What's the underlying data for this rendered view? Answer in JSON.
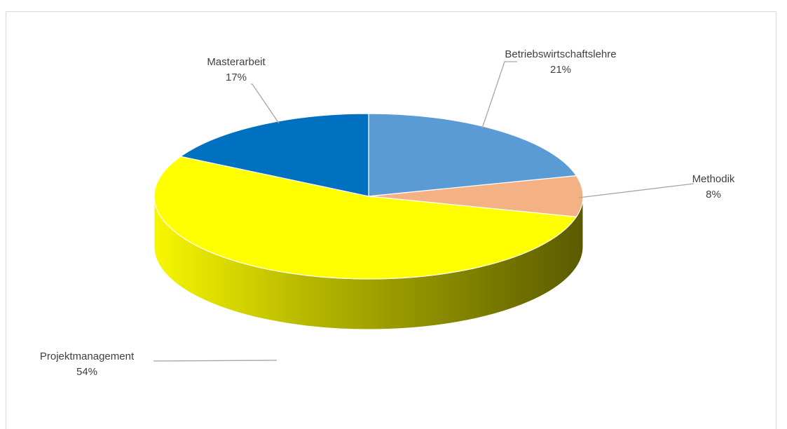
{
  "chart_data": {
    "type": "pie",
    "title": "",
    "categories": [
      "Betriebswirtschaftslehre",
      "Methodik",
      "Projektmanagement",
      "Masterarbeit"
    ],
    "values": [
      21,
      8,
      54,
      17
    ],
    "labels": [
      {
        "name": "Betriebswirtschaftslehre",
        "percent": "21%"
      },
      {
        "name": "Methodik",
        "percent": "8%"
      },
      {
        "name": "Projektmanagement",
        "percent": "54%"
      },
      {
        "name": "Masterarbeit",
        "percent": "17%"
      }
    ],
    "colors": [
      "#5b9bd5",
      "#f4b183",
      "#ffff00",
      "#0070c0"
    ],
    "style": "3d-pie",
    "legend": "none"
  }
}
